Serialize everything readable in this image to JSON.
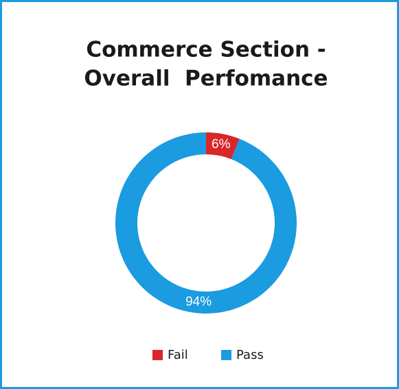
{
  "chart_data": {
    "type": "donut",
    "title": [
      "Commerce Section -",
      "Overall  Perfomance"
    ],
    "categories": [
      "Fail",
      "Pass"
    ],
    "values": [
      6,
      94
    ],
    "value_labels": [
      "6%",
      "94%"
    ],
    "colors": [
      "#d9262b",
      "#1b9be0"
    ]
  }
}
